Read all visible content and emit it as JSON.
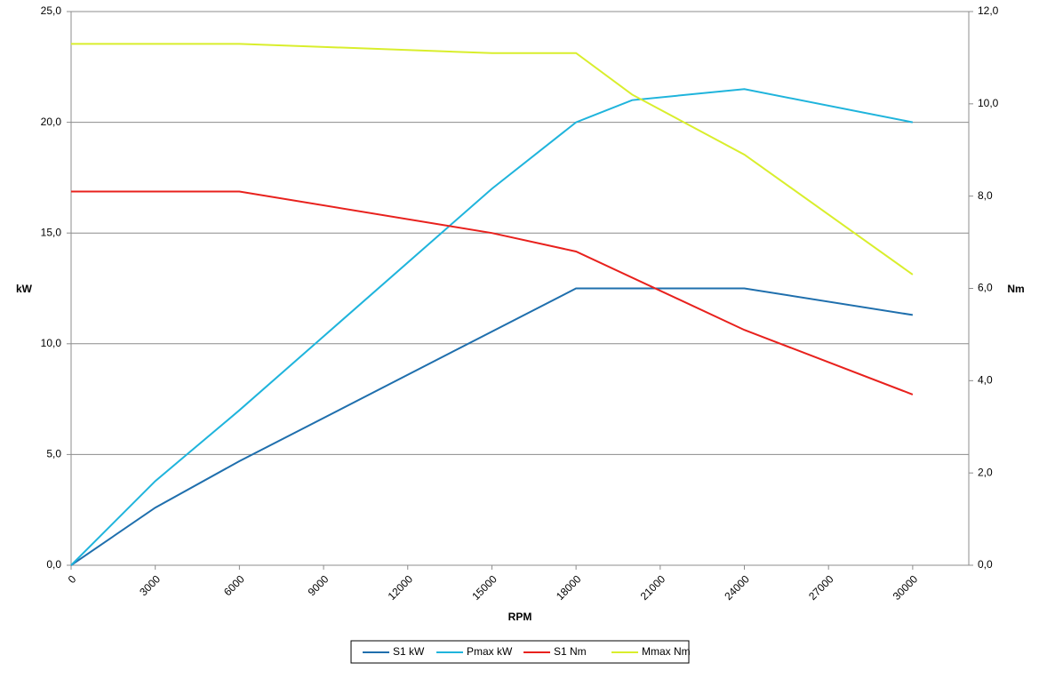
{
  "chart_data": {
    "type": "line",
    "x_label": "RPM",
    "y_label": "kW",
    "y2_label": "Nm",
    "xlim": [
      0,
      32000
    ],
    "xticks": [
      0,
      3000,
      6000,
      9000,
      12000,
      15000,
      18000,
      21000,
      24000,
      27000,
      30000
    ],
    "ylim": [
      0,
      25
    ],
    "yticks": [
      {
        "value": 0,
        "label": "0,0"
      },
      {
        "value": 5,
        "label": "5,0"
      },
      {
        "value": 10,
        "label": "10,0"
      },
      {
        "value": 15,
        "label": "15,0"
      },
      {
        "value": 20,
        "label": "20,0"
      },
      {
        "value": 25,
        "label": "25,0"
      }
    ],
    "y2lim": [
      0,
      12
    ],
    "y2ticks": [
      {
        "value": 0,
        "label": "0,0"
      },
      {
        "value": 2,
        "label": "2,0"
      },
      {
        "value": 4,
        "label": "4,0"
      },
      {
        "value": 6,
        "label": "6,0"
      },
      {
        "value": 8,
        "label": "8,0"
      },
      {
        "value": 10,
        "label": "10,0"
      },
      {
        "value": 12,
        "label": "12,0"
      }
    ],
    "grid": true,
    "legend": "bottom",
    "series": [
      {
        "name": "S1 kW",
        "color": "#1f6fad",
        "x": [
          0,
          3000,
          6000,
          18000,
          24000,
          30000
        ],
        "values": [
          0,
          2.6,
          4.7,
          12.5,
          12.5,
          11.3
        ]
      },
      {
        "name": "Pmax kW",
        "color": "#1fb4dc",
        "x": [
          0,
          3000,
          6000,
          15000,
          18000,
          20000,
          24000,
          30000
        ],
        "values": [
          0,
          3.8,
          7.0,
          17.0,
          20.0,
          21.0,
          21.5,
          20.0
        ]
      },
      {
        "name": "S1 Nm",
        "color": "#e8211d",
        "axis": "y2",
        "x": [
          0,
          6000,
          15000,
          18000,
          24000,
          30000
        ],
        "values": [
          8.1,
          8.1,
          7.2,
          6.8,
          5.1,
          3.7
        ]
      },
      {
        "name": "Mmax Nm",
        "color": "#d9ee2c",
        "axis": "y2",
        "x": [
          0,
          6000,
          15000,
          18000,
          20000,
          24000,
          30000
        ],
        "values": [
          11.3,
          11.3,
          11.1,
          11.1,
          10.2,
          8.9,
          6.3
        ]
      }
    ]
  }
}
